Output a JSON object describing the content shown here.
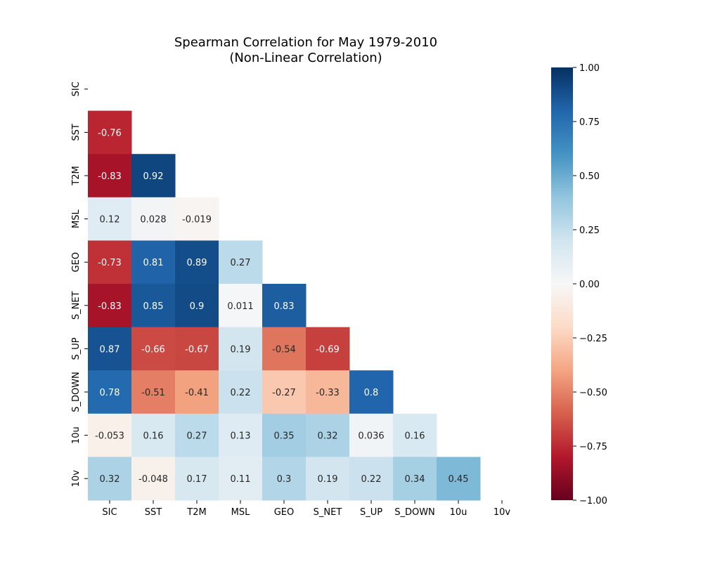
{
  "chart_data": {
    "type": "heatmap",
    "title": "Spearman Correlation for May 1979-2010",
    "subtitle": "(Non-Linear Correlation)",
    "row_labels": [
      "SIC",
      "SST",
      "T2M",
      "MSL",
      "GEO",
      "S_NET",
      "S_UP",
      "S_DOWN",
      "10u",
      "10v"
    ],
    "col_labels": [
      "SIC",
      "SST",
      "T2M",
      "MSL",
      "GEO",
      "S_NET",
      "S_UP",
      "S_DOWN",
      "10u",
      "10v"
    ],
    "matrix_mask": "lower-triangle (diagonal and upper triangle hidden)",
    "values": [
      [],
      [
        -0.76
      ],
      [
        -0.83,
        0.92
      ],
      [
        0.12,
        0.028,
        -0.019
      ],
      [
        -0.73,
        0.81,
        0.89,
        0.27
      ],
      [
        -0.83,
        0.85,
        0.9,
        0.011,
        0.83
      ],
      [
        0.87,
        -0.66,
        -0.67,
        0.19,
        -0.54,
        -0.69
      ],
      [
        0.78,
        -0.51,
        -0.41,
        0.22,
        -0.27,
        -0.33,
        0.8
      ],
      [
        -0.053,
        0.16,
        0.27,
        0.13,
        0.35,
        0.32,
        0.036,
        0.16
      ],
      [
        0.32,
        -0.048,
        0.17,
        0.11,
        0.3,
        0.19,
        0.22,
        0.34,
        0.45
      ]
    ],
    "labels": [
      [],
      [
        "-0.76"
      ],
      [
        "-0.83",
        "0.92"
      ],
      [
        "0.12",
        "0.028",
        "-0.019"
      ],
      [
        "-0.73",
        "0.81",
        "0.89",
        "0.27"
      ],
      [
        "-0.83",
        "0.85",
        "0.9",
        "0.011",
        "0.83"
      ],
      [
        "0.87",
        "-0.66",
        "-0.67",
        "0.19",
        "-0.54",
        "-0.69"
      ],
      [
        "0.78",
        "-0.51",
        "-0.41",
        "0.22",
        "-0.27",
        "-0.33",
        "0.8"
      ],
      [
        "-0.053",
        "0.16",
        "0.27",
        "0.13",
        "0.35",
        "0.32",
        "0.036",
        "0.16"
      ],
      [
        "0.32",
        "-0.048",
        "0.17",
        "0.11",
        "0.3",
        "0.19",
        "0.22",
        "0.34",
        "0.45"
      ]
    ],
    "colormap": "RdBu",
    "colormap_stops": [
      "#67001f",
      "#b2182b",
      "#d6604d",
      "#f4a582",
      "#fddbc7",
      "#f7f7f7",
      "#d1e5f0",
      "#92c5de",
      "#4393c3",
      "#2166ac",
      "#053061"
    ],
    "vmin": -1.0,
    "vmax": 1.0,
    "colorbar_ticks": [
      1.0,
      0.75,
      0.5,
      0.25,
      0.0,
      -0.25,
      -0.5,
      -0.75,
      -1.0
    ],
    "colorbar_tick_labels": [
      "1.00",
      "0.75",
      "0.50",
      "0.25",
      "0.00",
      "−0.25",
      "−0.50",
      "−0.75",
      "−1.00"
    ],
    "grid": false
  }
}
